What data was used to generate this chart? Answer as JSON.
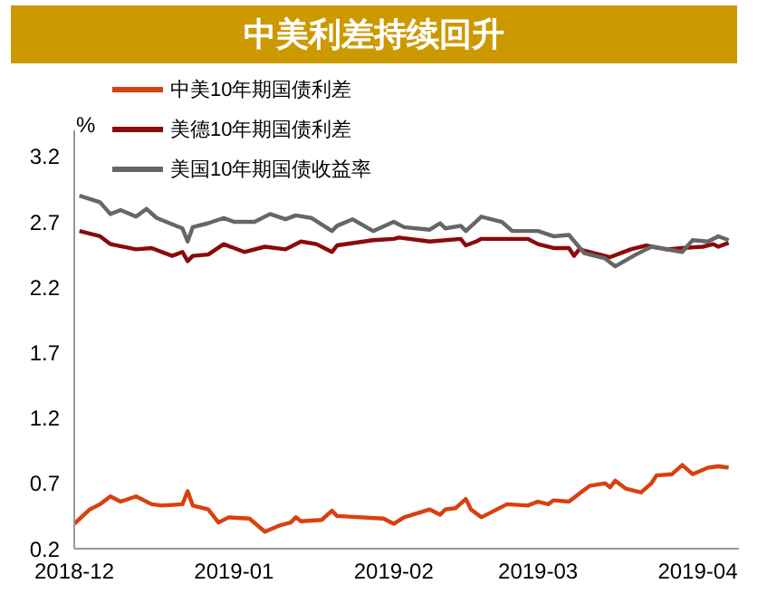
{
  "chart_data": {
    "type": "line",
    "title": "中美利差持续回升",
    "ylabel": "%",
    "xlim": [
      "2018-12-01",
      "2019-04-09"
    ],
    "xticks": [
      "2018-12",
      "2019-01",
      "2019-02",
      "2019-03",
      "2019-04"
    ],
    "ylim": [
      0.2,
      3.4
    ],
    "yticks": [
      0.2,
      0.7,
      1.2,
      1.7,
      2.2,
      2.7,
      3.2
    ],
    "grid": false,
    "legend": "top",
    "marker": "none",
    "line_style": "solid",
    "series": [
      {
        "name": "中美10年期国债利差",
        "color": "#d9400f",
        "x": [
          "2018-12-01",
          "2018-12-04",
          "2018-12-06",
          "2018-12-08",
          "2018-12-10",
          "2018-12-13",
          "2018-12-16",
          "2018-12-18",
          "2018-12-22",
          "2018-12-23",
          "2018-12-24",
          "2018-12-27",
          "2018-12-29",
          "2018-12-31",
          "2019-01-04",
          "2019-01-07",
          "2019-01-10",
          "2019-01-12",
          "2019-01-13",
          "2019-01-14",
          "2019-01-18",
          "2019-01-20",
          "2019-01-21",
          "2019-01-30",
          "2019-02-01",
          "2019-02-03",
          "2019-02-08",
          "2019-02-10",
          "2019-02-11",
          "2019-02-13",
          "2019-02-15",
          "2019-02-16",
          "2019-02-18",
          "2019-02-23",
          "2019-02-27",
          "2019-03-01",
          "2019-03-03",
          "2019-03-04",
          "2019-03-07",
          "2019-03-09",
          "2019-03-11",
          "2019-03-14",
          "2019-03-15",
          "2019-03-16",
          "2019-03-18",
          "2019-03-21",
          "2019-03-23",
          "2019-03-24",
          "2019-03-27",
          "2019-03-29",
          "2019-03-31",
          "2019-04-03",
          "2019-04-05",
          "2019-04-07"
        ],
        "values": [
          0.39,
          0.5,
          0.54,
          0.6,
          0.56,
          0.6,
          0.54,
          0.53,
          0.54,
          0.64,
          0.53,
          0.5,
          0.4,
          0.44,
          0.43,
          0.33,
          0.38,
          0.4,
          0.44,
          0.41,
          0.42,
          0.49,
          0.45,
          0.43,
          0.39,
          0.44,
          0.5,
          0.46,
          0.5,
          0.51,
          0.58,
          0.5,
          0.44,
          0.54,
          0.53,
          0.56,
          0.54,
          0.57,
          0.56,
          0.62,
          0.68,
          0.7,
          0.67,
          0.72,
          0.66,
          0.63,
          0.7,
          0.76,
          0.77,
          0.84,
          0.77,
          0.82,
          0.83,
          0.82
        ]
      },
      {
        "name": "美德10年期国债利差",
        "color": "#8b0a0a",
        "x": [
          "2018-12-02",
          "2018-12-06",
          "2018-12-08",
          "2018-12-13",
          "2018-12-16",
          "2018-12-20",
          "2018-12-22",
          "2018-12-23",
          "2018-12-24",
          "2018-12-27",
          "2018-12-30",
          "2019-01-03",
          "2019-01-07",
          "2019-01-11",
          "2019-01-14",
          "2019-01-17",
          "2019-01-20",
          "2019-01-21",
          "2019-01-28",
          "2019-02-01",
          "2019-02-02",
          "2019-02-08",
          "2019-02-14",
          "2019-02-15",
          "2019-02-17",
          "2019-02-18",
          "2019-02-27",
          "2019-03-01",
          "2019-03-04",
          "2019-03-07",
          "2019-03-08",
          "2019-03-09",
          "2019-03-15",
          "2019-03-19",
          "2019-03-22",
          "2019-03-26",
          "2019-03-29",
          "2019-04-02",
          "2019-04-04",
          "2019-04-05",
          "2019-04-07"
        ],
        "values": [
          2.63,
          2.59,
          2.53,
          2.49,
          2.5,
          2.44,
          2.47,
          2.4,
          2.44,
          2.45,
          2.53,
          2.47,
          2.51,
          2.49,
          2.55,
          2.53,
          2.47,
          2.52,
          2.56,
          2.57,
          2.58,
          2.55,
          2.57,
          2.52,
          2.55,
          2.57,
          2.57,
          2.53,
          2.5,
          2.5,
          2.44,
          2.49,
          2.43,
          2.49,
          2.52,
          2.49,
          2.5,
          2.51,
          2.53,
          2.51,
          2.54
        ]
      },
      {
        "name": "美国10年期国债收益率",
        "color": "#666666",
        "x": [
          "2018-12-02",
          "2018-12-06",
          "2018-12-08",
          "2018-12-10",
          "2018-12-13",
          "2018-12-15",
          "2018-12-17",
          "2018-12-22",
          "2018-12-23",
          "2018-12-24",
          "2018-12-27",
          "2018-12-30",
          "2019-01-01",
          "2019-01-05",
          "2019-01-08",
          "2019-01-11",
          "2019-01-13",
          "2019-01-16",
          "2019-01-20",
          "2019-01-21",
          "2019-01-24",
          "2019-01-28",
          "2019-02-01",
          "2019-02-03",
          "2019-02-08",
          "2019-02-10",
          "2019-02-11",
          "2019-02-14",
          "2019-02-15",
          "2019-02-18",
          "2019-02-22",
          "2019-02-24",
          "2019-03-01",
          "2019-03-04",
          "2019-03-07",
          "2019-03-10",
          "2019-03-14",
          "2019-03-16",
          "2019-03-20",
          "2019-03-23",
          "2019-03-29",
          "2019-03-31",
          "2019-04-03",
          "2019-04-05",
          "2019-04-07"
        ],
        "values": [
          2.9,
          2.85,
          2.76,
          2.79,
          2.74,
          2.8,
          2.73,
          2.65,
          2.55,
          2.66,
          2.69,
          2.73,
          2.7,
          2.7,
          2.76,
          2.72,
          2.75,
          2.73,
          2.63,
          2.67,
          2.72,
          2.63,
          2.7,
          2.66,
          2.64,
          2.69,
          2.65,
          2.67,
          2.63,
          2.74,
          2.7,
          2.63,
          2.63,
          2.59,
          2.6,
          2.46,
          2.42,
          2.36,
          2.45,
          2.51,
          2.47,
          2.56,
          2.55,
          2.59,
          2.56
        ]
      }
    ]
  }
}
